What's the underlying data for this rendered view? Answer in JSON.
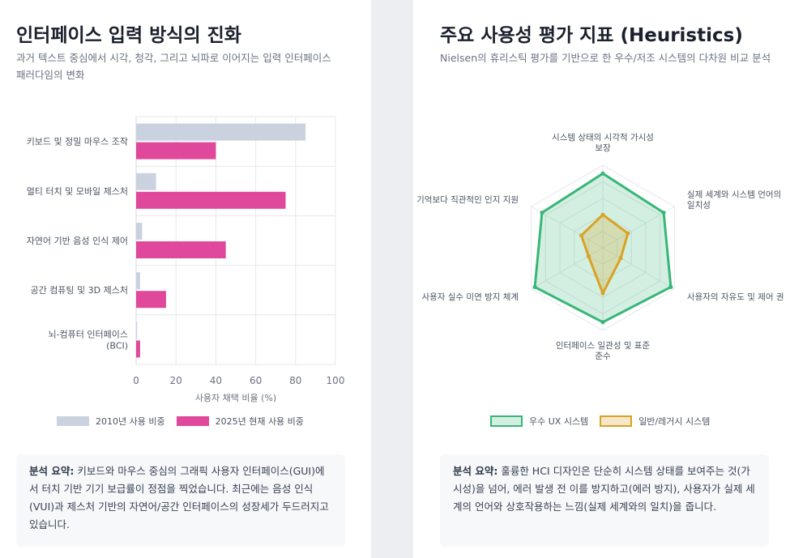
{
  "left_card": {
    "title": "인터페이스 입력 방식의 진화",
    "subtitle": "과거 텍스트 중심에서 시각, 청각, 그리고 뇌파로 이어지는 입력 인터페이스 패러다임의 변화",
    "summary_label": "분석 요약:",
    "summary_text": " 키보드와 마우스 중심의 그래픽 사용자 인터페이스(GUI)에서 터치 기반 기기 보급률이 정점을 찍었습니다. 최근에는 음성 인식(VUI)과 제스처 기반의 자연어/공간 인터페이스의 성장세가 두드러지고 있습니다."
  },
  "right_card": {
    "title": "주요 사용성 평가 지표 (Heuristics)",
    "subtitle": "Nielsen의 휴리스틱 평가를 기반으로 한 우수/저조 시스템의 다차원 비교 분석",
    "summary_label": "분석 요약:",
    "summary_text": " 훌륭한 HCI 디자인은 단순히 시스템 상태를 보여주는 것(가시성)을 넘어, 에러 발생 전 이를 방지하고(에러 방지), 사용자가 실제 세계의 언어와 상호작용하는 느낌(실제 세계와의 일치)을 줍니다."
  },
  "chart_data": [
    {
      "type": "bar",
      "orientation": "horizontal",
      "categories": [
        "키보드 및 정밀 마우스 조작",
        "멀티 터치 및 모바일 제스처",
        "자연어 기반 음성 인식 제어",
        "공간 컴퓨팅 및 3D 제스처",
        "뇌-컴퓨터 인터페이스 (BCI)"
      ],
      "category_lines": [
        [
          "키보드 및 정밀 마우스 조작"
        ],
        [
          "멀티 터치 및 모바일 제스처"
        ],
        [
          "자연어 기반 음성 인식 제어"
        ],
        [
          "공간 컴퓨팅 및 3D 제스처"
        ],
        [
          "뇌-컴퓨터 인터페이스",
          "(BCI)"
        ]
      ],
      "series": [
        {
          "name": "2010년 사용 비중",
          "values": [
            85,
            10,
            3,
            2,
            0.5
          ],
          "color": "#cbd2df"
        },
        {
          "name": "2025년 현재 사용 비중",
          "values": [
            40,
            75,
            45,
            15,
            2
          ],
          "color": "#e0499b"
        }
      ],
      "xlabel": "사용자 채택 비율 (%)",
      "ylabel": "",
      "xlim": [
        0,
        100
      ],
      "xticks": [
        "0",
        "20",
        "40",
        "60",
        "80",
        "100"
      ],
      "grid": true,
      "legend_position": "bottom"
    },
    {
      "type": "radar",
      "axes": [
        {
          "label_lines": [
            "시스템 상태의 시각적 가시성",
            "보장"
          ]
        },
        {
          "label_lines": [
            "실제 세계와 시스템 언어의",
            "일치성"
          ]
        },
        {
          "label_lines": [
            "사용자의 자유도 및 제어 권"
          ]
        },
        {
          "label_lines": [
            "인터페이스 일관성 및 표준",
            "준수"
          ]
        },
        {
          "label_lines": [
            "사용자 실수 미연 방지 체계"
          ]
        },
        {
          "label_lines": [
            "기억보다 직관적인 인지 지원"
          ]
        }
      ],
      "series": [
        {
          "name": "우수 UX 시스템",
          "values": [
            90,
            85,
            95,
            90,
            95,
            85
          ],
          "color": "#37b677",
          "fill": "rgba(55,182,119,0.22)"
        },
        {
          "name": "일반/레거시 시스템",
          "values": [
            40,
            35,
            25,
            55,
            20,
            30
          ],
          "color": "#d9a225",
          "fill": "rgba(217,162,37,0.25)"
        }
      ],
      "range": [
        0,
        100
      ],
      "legend_position": "bottom"
    }
  ]
}
